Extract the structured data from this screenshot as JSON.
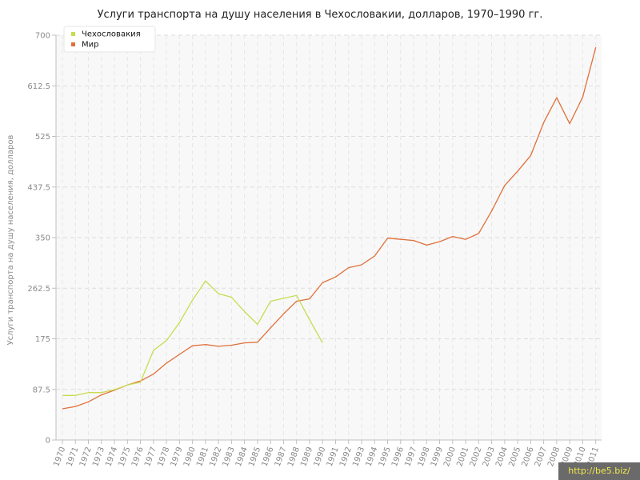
{
  "chart_data": {
    "type": "line",
    "title": "Услуги транспорта на душу населения в Чехословакии, долларов, 1970–1990 гг.",
    "ylabel": "Услуги транспорта на душу населения, долларов",
    "xlabel": "",
    "ylim": [
      0,
      700
    ],
    "xlim": [
      1970,
      2011
    ],
    "yticks": [
      "0",
      "87.5",
      "175",
      "262.5",
      "350",
      "437.5",
      "525",
      "612.5",
      "700"
    ],
    "xticks": [
      "1970",
      "1971",
      "1972",
      "1973",
      "1974",
      "1975",
      "1976",
      "1977",
      "1978",
      "1979",
      "1980",
      "1981",
      "1982",
      "1983",
      "1984",
      "1985",
      "1986",
      "1987",
      "1988",
      "1989",
      "1990",
      "1991",
      "1992",
      "1993",
      "1994",
      "1995",
      "1996",
      "1997",
      "1998",
      "1999",
      "2000",
      "2001",
      "2002",
      "2003",
      "2004",
      "2005",
      "2006",
      "2007",
      "2008",
      "2009",
      "2010",
      "2011"
    ],
    "grid": true,
    "legend_position": "top-left",
    "series": [
      {
        "name": "Чехословакия",
        "color": "#c8dc50",
        "x": [
          1970,
          1971,
          1972,
          1973,
          1974,
          1975,
          1976,
          1977,
          1978,
          1979,
          1980,
          1981,
          1982,
          1983,
          1984,
          1985,
          1986,
          1987,
          1988,
          1989,
          1990
        ],
        "y": [
          77,
          77,
          82,
          82,
          87,
          95,
          100,
          155,
          172,
          203,
          242,
          275,
          253,
          247,
          222,
          200,
          240,
          245,
          250,
          208,
          168
        ]
      },
      {
        "name": "Мир",
        "color": "#e0703a",
        "x": [
          1970,
          1971,
          1972,
          1973,
          1974,
          1975,
          1976,
          1977,
          1978,
          1979,
          1980,
          1981,
          1982,
          1983,
          1984,
          1985,
          1986,
          1987,
          1988,
          1989,
          1990,
          1991,
          1992,
          1993,
          1994,
          1995,
          1996,
          1997,
          1998,
          1999,
          2000,
          2001,
          2002,
          2003,
          2004,
          2005,
          2006,
          2007,
          2008,
          2009,
          2010,
          2011
        ],
        "y": [
          54,
          58,
          66,
          78,
          86,
          95,
          102,
          114,
          133,
          148,
          163,
          165,
          162,
          164,
          168,
          169,
          194,
          218,
          240,
          244,
          272,
          282,
          298,
          303,
          318,
          349,
          347,
          345,
          337,
          343,
          352,
          347,
          357,
          396,
          440,
          465,
          492,
          549,
          592,
          547,
          593,
          679
        ]
      }
    ]
  },
  "watermark": "http://be5.biz/"
}
